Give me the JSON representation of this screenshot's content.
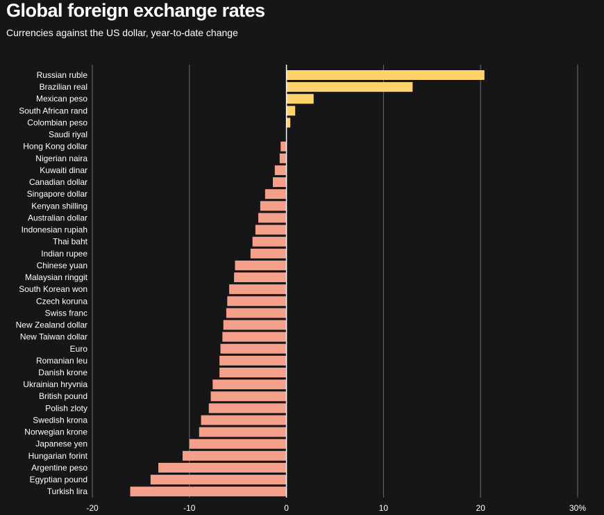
{
  "title": "Global foreign exchange rates",
  "subtitle": "Currencies against the US dollar, year-to-date change",
  "colors": {
    "background": "#161618",
    "positive": "#ffd36b",
    "negative": "#f4a08a",
    "grid": "#6e6e70",
    "zero": "#ffffff",
    "text": "#ffffff"
  },
  "chart_data": {
    "type": "bar",
    "orientation": "horizontal",
    "title": "Global foreign exchange rates",
    "subtitle": "Currencies against the US dollar, year-to-date change",
    "xlabel": "",
    "ylabel": "",
    "xlim": [
      -20,
      30
    ],
    "ticks": [
      -20,
      -10,
      0,
      10,
      20,
      30
    ],
    "tick_labels": [
      "-20",
      "-10",
      "0",
      "10",
      "20",
      "30%"
    ],
    "grid": true,
    "categories": [
      "Russian ruble",
      "Brazilian real",
      "Mexican peso",
      "South African rand",
      "Colombian peso",
      "Saudi riyal",
      "Hong Kong dollar",
      "Nigerian naira",
      "Kuwaiti dinar",
      "Canadian dollar",
      "Singapore dollar",
      "Kenyan shilling",
      "Australian dollar",
      "Indonesian rupiah",
      "Thai baht",
      "Indian rupee",
      "Chinese yuan",
      "Malaysian ringgit",
      "South Korean won",
      "Czech koruna",
      "Swiss franc",
      "New Zealand dollar",
      "New Taiwan dollar",
      "Euro",
      "Romanian leu",
      "Danish krone",
      "Ukrainian hryvnia",
      "British pound",
      "Polish zloty",
      "Swedish krona",
      "Norwegian krone",
      "Japanese yen",
      "Hungarian forint",
      "Argentine peso",
      "Egyptian pound",
      "Turkish lira"
    ],
    "values": [
      20.4,
      13.0,
      2.8,
      0.9,
      0.4,
      0.0,
      -0.6,
      -0.7,
      -1.2,
      -1.4,
      -2.2,
      -2.7,
      -2.9,
      -3.2,
      -3.5,
      -3.7,
      -5.3,
      -5.4,
      -5.9,
      -6.1,
      -6.2,
      -6.5,
      -6.6,
      -6.8,
      -6.9,
      -6.9,
      -7.6,
      -7.8,
      -8.0,
      -8.8,
      -9.0,
      -10.0,
      -10.7,
      -13.2,
      -14.0,
      -16.1
    ]
  }
}
